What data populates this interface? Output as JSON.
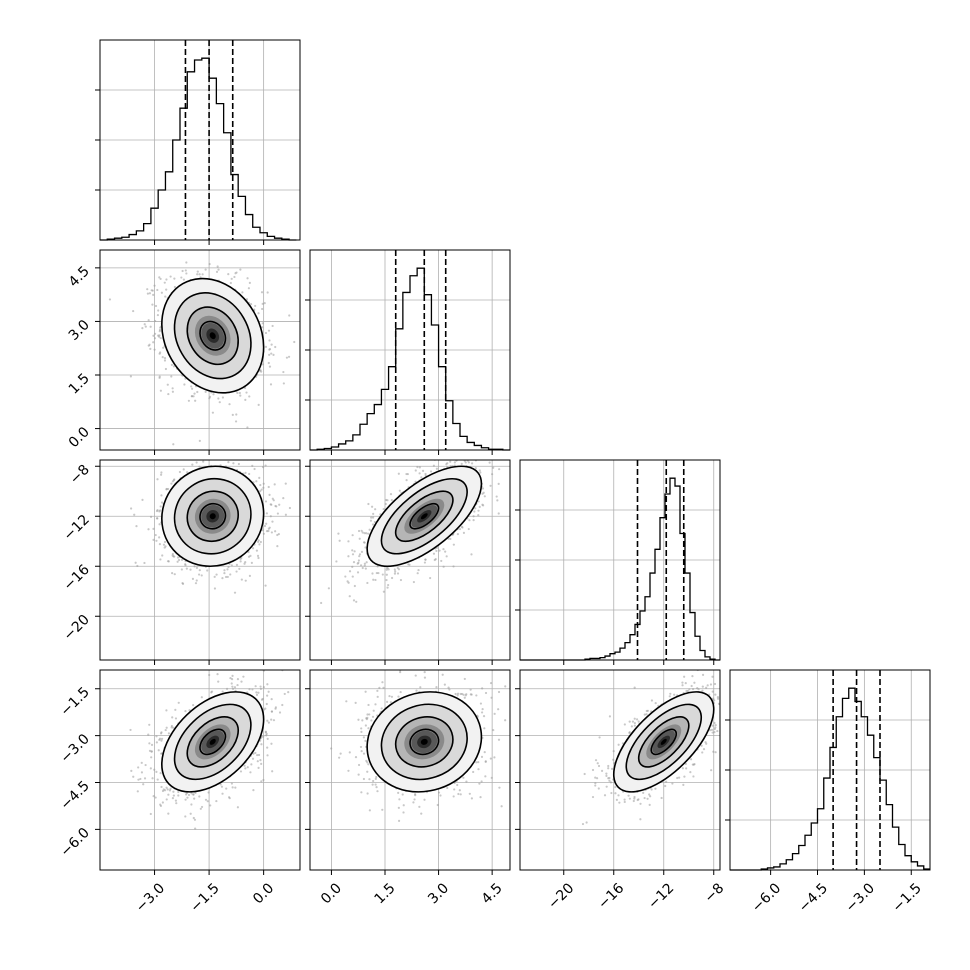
{
  "colors": {
    "background": "#ffffff",
    "axes": "#000000",
    "grid": "#b0b0b0",
    "hist_line": "#000000",
    "quantile_line": "#000000",
    "scatter_points": "#9a9a9a",
    "contour_line": "#000000"
  },
  "chart_data": {
    "type": "corner",
    "title": "",
    "grid": true,
    "parameters": [
      {
        "index": 0,
        "range": [
          -4.5,
          1.0
        ],
        "ticks": [
          -3.0,
          -1.5,
          0.0
        ],
        "tick_labels": [
          "−3.0",
          "−1.5",
          "0.0"
        ],
        "quantiles": [
          -2.15,
          -1.5,
          -0.85
        ]
      },
      {
        "index": 1,
        "range": [
          -0.6,
          5.0
        ],
        "ticks": [
          0.0,
          1.5,
          3.0,
          4.5
        ],
        "tick_labels": [
          "0.0",
          "1.5",
          "3.0",
          "4.5"
        ],
        "quantiles": [
          1.8,
          2.6,
          3.2
        ]
      },
      {
        "index": 2,
        "range": [
          -23.5,
          -7.5
        ],
        "ticks": [
          -20,
          -16,
          -12,
          -8
        ],
        "tick_labels": [
          "−20",
          "−16",
          "−12",
          "−8"
        ],
        "quantiles": [
          -14.1,
          -11.8,
          -10.4
        ]
      },
      {
        "index": 3,
        "range": [
          -7.3,
          -0.9
        ],
        "ticks": [
          -6.0,
          -4.5,
          -3.0,
          -1.5
        ],
        "tick_labels": [
          "−6.0",
          "−4.5",
          "−3.0",
          "−1.5"
        ],
        "quantiles": [
          -4.0,
          -3.25,
          -2.5
        ]
      }
    ],
    "histograms": [
      {
        "param": 0,
        "x": [
          -4.4,
          -4.2,
          -4.0,
          -3.8,
          -3.6,
          -3.4,
          -3.2,
          -3.0,
          -2.8,
          -2.6,
          -2.4,
          -2.2,
          -2.0,
          -1.8,
          -1.6,
          -1.4,
          -1.2,
          -1.0,
          -0.8,
          -0.6,
          -0.4,
          -0.2,
          0.0,
          0.2,
          0.4,
          0.6,
          0.8
        ],
        "counts": [
          0,
          1,
          2,
          3,
          6,
          10,
          18,
          35,
          55,
          75,
          110,
          145,
          185,
          198,
          200,
          178,
          150,
          118,
          72,
          48,
          28,
          14,
          8,
          4,
          2,
          1,
          0
        ]
      },
      {
        "param": 1,
        "x": [
          -0.5,
          -0.3,
          -0.1,
          0.1,
          0.3,
          0.5,
          0.7,
          0.9,
          1.1,
          1.3,
          1.5,
          1.7,
          1.9,
          2.1,
          2.3,
          2.5,
          2.7,
          2.9,
          3.1,
          3.3,
          3.5,
          3.7,
          3.9,
          4.1,
          4.3,
          4.5,
          4.7,
          4.9
        ],
        "counts": [
          0,
          1,
          2,
          4,
          8,
          12,
          20,
          34,
          48,
          60,
          80,
          110,
          160,
          208,
          230,
          240,
          205,
          165,
          110,
          65,
          35,
          18,
          10,
          6,
          3,
          1,
          1,
          0
        ]
      },
      {
        "param": 2,
        "x": [
          -23.3,
          -22.9,
          -22.5,
          -22.1,
          -21.7,
          -21.3,
          -20.9,
          -20.5,
          -20.1,
          -19.7,
          -19.3,
          -18.9,
          -18.5,
          -18.1,
          -17.7,
          -17.3,
          -16.9,
          -16.5,
          -16.1,
          -15.7,
          -15.3,
          -14.9,
          -14.5,
          -14.1,
          -13.7,
          -13.3,
          -12.9,
          -12.5,
          -12.1,
          -11.7,
          -11.3,
          -10.9,
          -10.5,
          -10.1,
          -9.7,
          -9.3,
          -8.9,
          -8.5,
          -8.1,
          -7.7
        ],
        "counts": [
          0,
          0,
          0,
          0,
          0,
          0,
          0,
          0,
          0,
          0,
          0,
          0,
          0,
          1,
          2,
          2,
          3,
          5,
          8,
          10,
          15,
          22,
          32,
          45,
          62,
          80,
          110,
          140,
          180,
          210,
          230,
          220,
          160,
          110,
          60,
          30,
          12,
          4,
          1,
          0
        ]
      },
      {
        "param": 3,
        "x": [
          -7.2,
          -7.0,
          -6.8,
          -6.6,
          -6.4,
          -6.2,
          -6.0,
          -5.8,
          -5.6,
          -5.4,
          -5.2,
          -5.0,
          -4.8,
          -4.6,
          -4.4,
          -4.2,
          -4.0,
          -3.8,
          -3.6,
          -3.4,
          -3.2,
          -3.0,
          -2.8,
          -2.6,
          -2.4,
          -2.2,
          -2.0,
          -1.8,
          -1.6,
          -1.4,
          -1.2,
          -1.0
        ],
        "counts": [
          0,
          0,
          0,
          0,
          0,
          1,
          2,
          3,
          6,
          10,
          16,
          24,
          34,
          46,
          60,
          90,
          120,
          150,
          168,
          178,
          165,
          150,
          132,
          110,
          88,
          64,
          42,
          25,
          14,
          8,
          4,
          1
        ]
      }
    ],
    "pairs": [
      {
        "x_param": 0,
        "y_param": 1,
        "mean": [
          -1.4,
          2.6
        ],
        "sigma": [
          0.7,
          0.8
        ],
        "corr": -0.2
      },
      {
        "x_param": 0,
        "y_param": 2,
        "mean": [
          -1.4,
          -12.0
        ],
        "sigma": [
          0.7,
          2.0
        ],
        "corr": 0.05
      },
      {
        "x_param": 1,
        "y_param": 2,
        "mean": [
          2.6,
          -12.0
        ],
        "sigma": [
          0.8,
          2.0
        ],
        "corr": 0.65
      },
      {
        "x_param": 0,
        "y_param": 3,
        "mean": [
          -1.4,
          -3.2
        ],
        "sigma": [
          0.7,
          0.8
        ],
        "corr": 0.45
      },
      {
        "x_param": 1,
        "y_param": 3,
        "mean": [
          2.6,
          -3.2
        ],
        "sigma": [
          0.8,
          0.8
        ],
        "corr": 0.1
      },
      {
        "x_param": 2,
        "y_param": 3,
        "mean": [
          -12.0,
          -3.2
        ],
        "sigma": [
          2.0,
          0.8
        ],
        "corr": 0.65
      }
    ],
    "contour_levels_sigma": [
      0.5,
      1.0,
      1.5,
      2.0
    ]
  }
}
